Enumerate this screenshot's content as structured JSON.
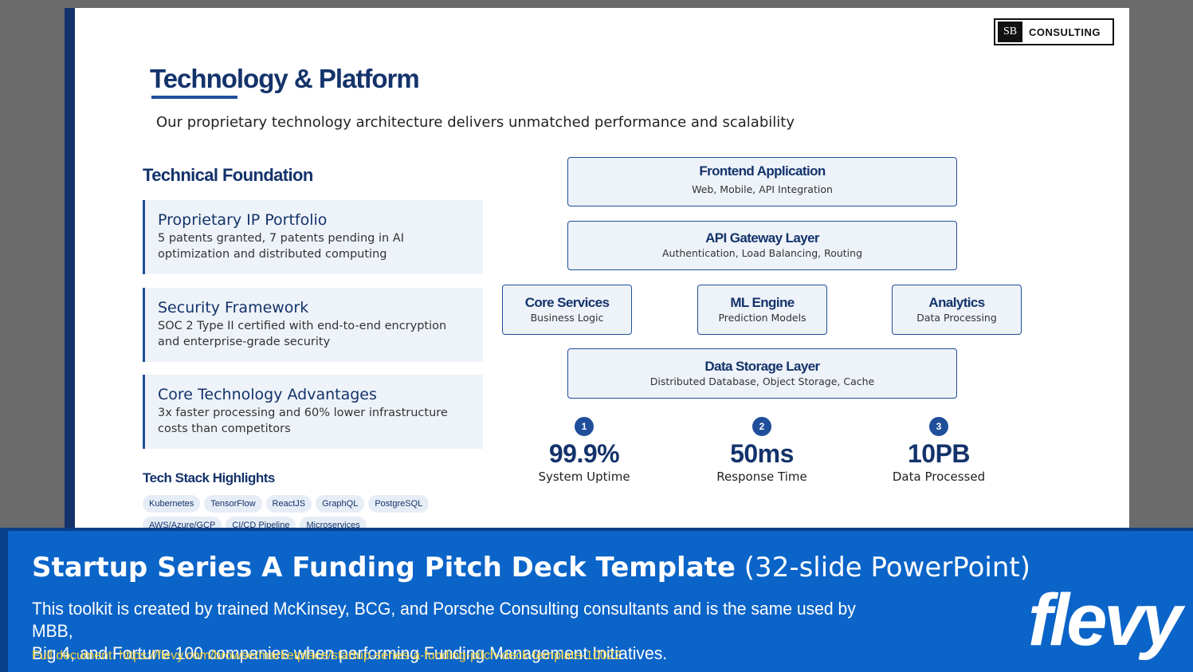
{
  "logo": {
    "mark": "SB",
    "text": "CONSULTING"
  },
  "slide": {
    "title": "Technology & Platform",
    "subtitle": "Our proprietary technology architecture delivers unmatched performance and scalability",
    "foundation_heading": "Technical Foundation",
    "cards": [
      {
        "title": "Proprietary IP Portfolio",
        "desc": "5 patents granted, 7 patents pending in AI optimization and distributed computing"
      },
      {
        "title": "Security Framework",
        "desc": "SOC 2 Type II certified with end-to-end encryption and enterprise-grade security"
      },
      {
        "title": "Core Technology Advantages",
        "desc": "3x faster processing and 60% lower infrastructure costs than competitors"
      }
    ],
    "stack_heading": "Tech Stack Highlights",
    "stack": [
      "Kubernetes",
      "TensorFlow",
      "ReactJS",
      "GraphQL",
      "PostgreSQL",
      "AWS/Azure/GCP",
      "CI/CD Pipeline",
      "Microservices"
    ],
    "architecture": {
      "frontend": {
        "title": "Frontend Application",
        "sub": "Web, Mobile, API Integration"
      },
      "gateway": {
        "title": "API Gateway Layer",
        "sub": "Authentication, Load Balancing, Routing"
      },
      "core": {
        "title": "Core Services",
        "sub": "Business Logic"
      },
      "ml": {
        "title": "ML Engine",
        "sub": "Prediction Models"
      },
      "analytics": {
        "title": "Analytics",
        "sub": "Data Processing"
      },
      "storage": {
        "title": "Data Storage Layer",
        "sub": "Distributed Database, Object Storage, Cache"
      }
    },
    "metrics": [
      {
        "badge": "1",
        "value": "99.9%",
        "label": "System Uptime"
      },
      {
        "badge": "2",
        "value": "50ms",
        "label": "Response Time"
      },
      {
        "badge": "3",
        "value": "10PB",
        "label": "Data Processed"
      }
    ]
  },
  "banner": {
    "title_bold": "Startup Series A Funding Pitch Deck Template",
    "title_rest": " (32-slide PowerPoint)",
    "desc_line1": "This toolkit is created by trained McKinsey, BCG, and Porsche Consulting consultants and is the same used by MBB,",
    "desc_line2": "Big 4, and Fortune 100 companies when performing Funding Management Initiatives.",
    "link": "Full document: https://flevy.com/browse/marketplace/startup-series-a-funding-pitch-deck-template-10022",
    "brand": "flevy"
  },
  "colors": {
    "navy": "#14336b",
    "blue": "#1f4e9b",
    "banner": "#0b64c8",
    "link": "#f4d23c"
  }
}
